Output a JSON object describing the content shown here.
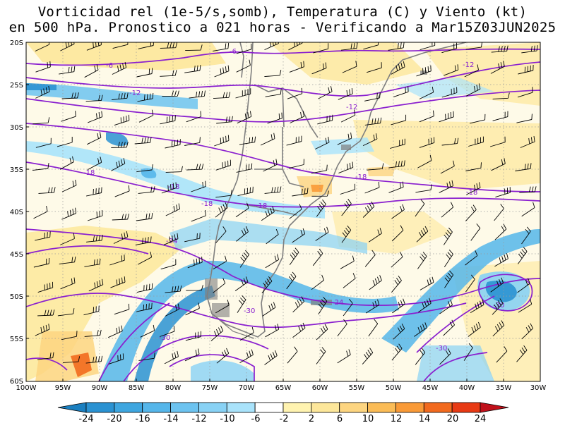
{
  "title": {
    "line1": "Vorticidad rel (1e-5/s,somb), Temperatura (C) y Viento (kt)",
    "line2": "en 500 hPa. Pronostico a 021 horas - Verificando a Mar15Z03JUN2025"
  },
  "map": {
    "lat_labels": [
      "20S",
      "25S",
      "30S",
      "35S",
      "40S",
      "45S",
      "50S",
      "55S",
      "60S"
    ],
    "lon_labels": [
      "100W",
      "95W",
      "90W",
      "85W",
      "80W",
      "75W",
      "70W",
      "65W",
      "60W",
      "55W",
      "50W",
      "45W",
      "40W",
      "35W",
      "30W"
    ],
    "temperature_contour_labels": [
      "-6",
      "-6",
      "-12",
      "-12",
      "-12",
      "-18",
      "-18",
      "-18",
      "-18",
      "-18",
      "-18",
      "-24",
      "-24",
      "-30",
      "-30",
      "-30",
      "-30"
    ],
    "contour_color": "#8a1fcf",
    "coastline_color": "#808080"
  },
  "colorbar": {
    "labels": [
      "-24",
      "-20",
      "-16",
      "-14",
      "-12",
      "-10",
      "-6",
      "-2",
      "2",
      "6",
      "10",
      "12",
      "14",
      "20",
      "24"
    ],
    "colors": [
      "#1a7fc0",
      "#2a92d2",
      "#3ea6e0",
      "#55b6ea",
      "#6cc3f0",
      "#88d2f5",
      "#a9e3fb",
      "#ffffff",
      "#fff3b0",
      "#fde79a",
      "#fdd580",
      "#fbbc56",
      "#f99a37",
      "#f26a1e",
      "#e83a14",
      "#c0101a"
    ]
  }
}
